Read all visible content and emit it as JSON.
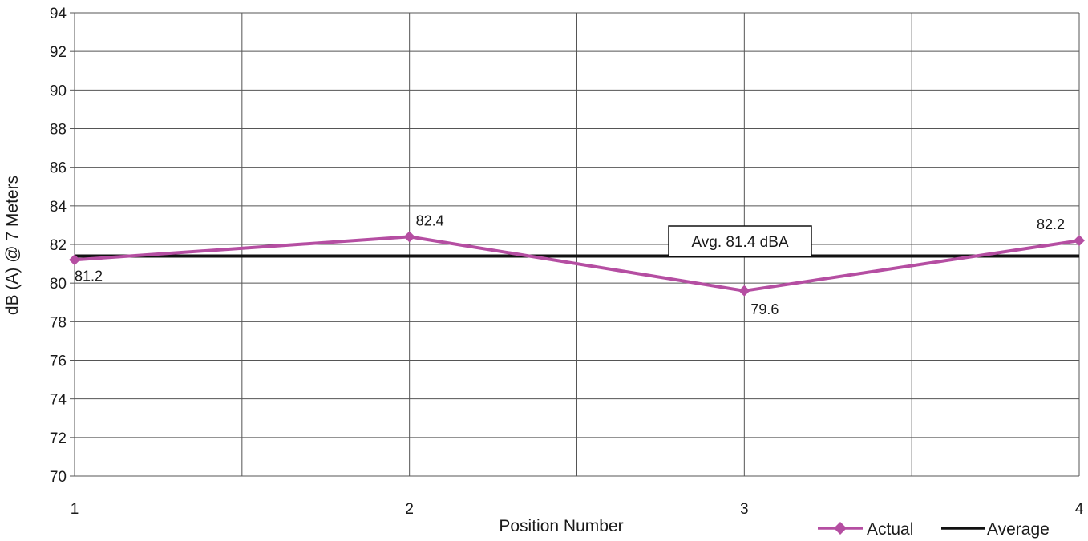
{
  "chart_data": {
    "type": "line",
    "xlabel": "Position Number",
    "ylabel": "dB (A) @ 7 Meters",
    "x": [
      1,
      2,
      3,
      4
    ],
    "x_ticks": [
      "1",
      "2",
      "3",
      "4"
    ],
    "xlim": [
      1,
      4
    ],
    "ylim": [
      70,
      94
    ],
    "y_ticks": [
      70,
      72,
      74,
      76,
      78,
      80,
      82,
      84,
      86,
      88,
      90,
      92,
      94
    ],
    "grid": true,
    "series": [
      {
        "name": "Actual",
        "values": [
          81.2,
          82.4,
          79.6,
          82.2
        ],
        "labels": [
          "81.2",
          "82.4",
          "79.6",
          "82.2"
        ],
        "color": "#b54ea2",
        "marker": "diamond"
      },
      {
        "name": "Average",
        "values": [
          81.4,
          81.4,
          81.4,
          81.4
        ],
        "color": "#111111"
      }
    ],
    "annotation": {
      "text": "Avg. 81.4 dBA"
    },
    "legend_position": "bottom-right"
  }
}
